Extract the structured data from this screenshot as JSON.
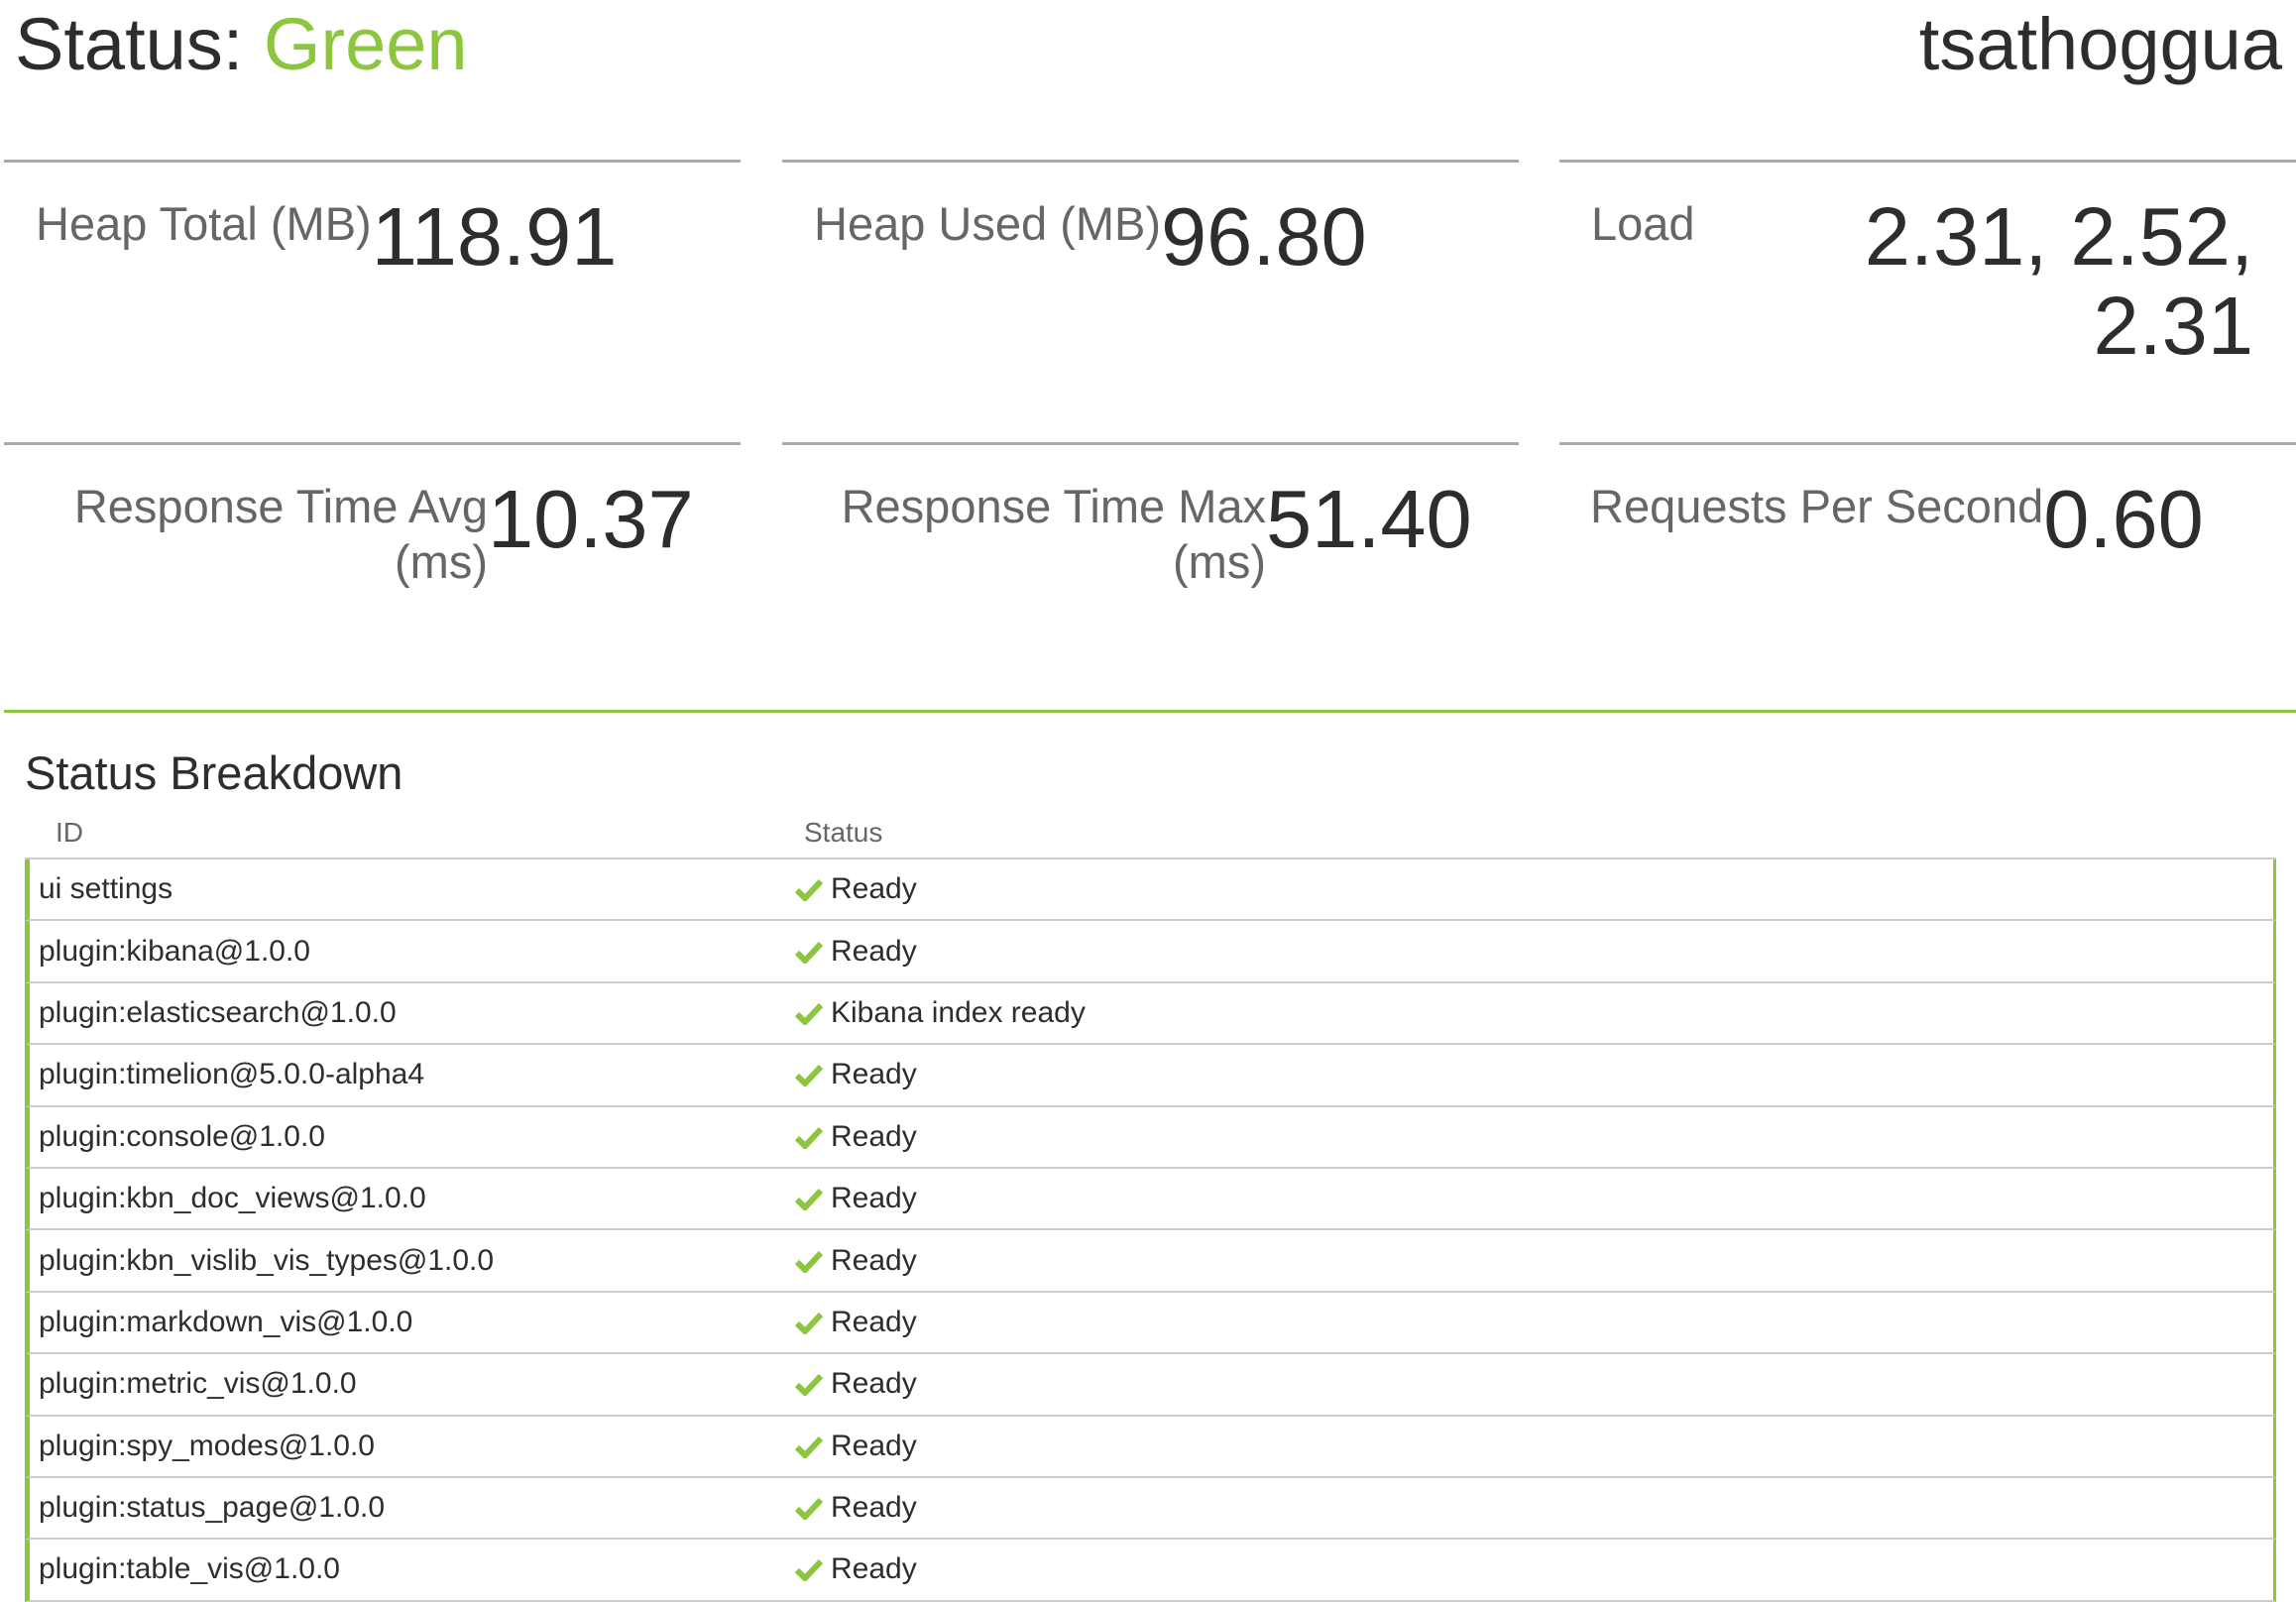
{
  "header": {
    "status_prefix": "Status:",
    "status_value": "Green",
    "hostname": "tsathoggua"
  },
  "colors": {
    "accent": "#8cc63f",
    "border": "#aaaaaa"
  },
  "metrics": [
    {
      "label": "Heap Total (MB)",
      "value": "118.91"
    },
    {
      "label": "Heap Used (MB)",
      "value": "96.80"
    },
    {
      "label": "Load",
      "value": "2.31, 2.52, 2.31"
    },
    {
      "label": "Response Time Avg (ms)",
      "value": "10.37"
    },
    {
      "label": "Response Time Max (ms)",
      "value": "51.40"
    },
    {
      "label": "Requests Per Second",
      "value": "0.60"
    }
  ],
  "breakdown": {
    "title": "Status Breakdown",
    "columns": [
      "ID",
      "Status"
    ],
    "status_icon": "check-icon",
    "rows": [
      {
        "id": "ui settings",
        "status": "Ready"
      },
      {
        "id": "plugin:kibana@1.0.0",
        "status": "Ready"
      },
      {
        "id": "plugin:elasticsearch@1.0.0",
        "status": "Kibana index ready"
      },
      {
        "id": "plugin:timelion@5.0.0-alpha4",
        "status": "Ready"
      },
      {
        "id": "plugin:console@1.0.0",
        "status": "Ready"
      },
      {
        "id": "plugin:kbn_doc_views@1.0.0",
        "status": "Ready"
      },
      {
        "id": "plugin:kbn_vislib_vis_types@1.0.0",
        "status": "Ready"
      },
      {
        "id": "plugin:markdown_vis@1.0.0",
        "status": "Ready"
      },
      {
        "id": "plugin:metric_vis@1.0.0",
        "status": "Ready"
      },
      {
        "id": "plugin:spy_modes@1.0.0",
        "status": "Ready"
      },
      {
        "id": "plugin:status_page@1.0.0",
        "status": "Ready"
      },
      {
        "id": "plugin:table_vis@1.0.0",
        "status": "Ready"
      }
    ]
  }
}
